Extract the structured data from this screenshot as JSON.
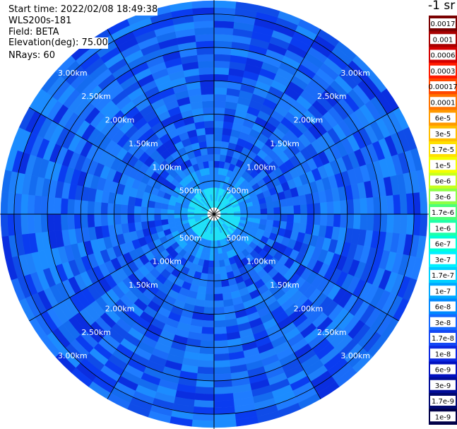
{
  "header": {
    "start_time": "Start time: 2022/02/08 18:49:38",
    "instrument": "WLS200s-181",
    "field": "Field: BETA",
    "elevation": "Elevation(deg): 75.00",
    "nrays": "NRays: 60"
  },
  "chart_data": {
    "type": "heatmap",
    "projection": "polar",
    "rays": 60,
    "range_rings": [
      "500m",
      "1.00km",
      "1.50km",
      "2.00km",
      "2.50km",
      "3.00km"
    ],
    "range_ring_values_km": [
      0.5,
      1.0,
      1.5,
      2.0,
      2.5,
      3.0
    ],
    "max_range_km": 3.2,
    "grid": true,
    "colorbar": {
      "title": "-1 sr",
      "placement": "right",
      "ticks": [
        {
          "label": "0.0017",
          "color": "#7a0000"
        },
        {
          "label": "0.001",
          "color": "#a80000"
        },
        {
          "label": "0.0006",
          "color": "#d40000"
        },
        {
          "label": "0.0003",
          "color": "#ff1a00"
        },
        {
          "label": "0.00017",
          "color": "#ff4800"
        },
        {
          "label": "0.0001",
          "color": "#ff7400"
        },
        {
          "label": "6e-5",
          "color": "#ff9a00"
        },
        {
          "label": "3e-5",
          "color": "#ffbe00"
        },
        {
          "label": "1.7e-5",
          "color": "#ffe000"
        },
        {
          "label": "1e-5",
          "color": "#f4ff00"
        },
        {
          "label": "6e-6",
          "color": "#c8ff1e"
        },
        {
          "label": "3e-6",
          "color": "#8cff46"
        },
        {
          "label": "1.7e-6",
          "color": "#4cff78"
        },
        {
          "label": "1e-6",
          "color": "#1effaa"
        },
        {
          "label": "6e-7",
          "color": "#00ffd8"
        },
        {
          "label": "3e-7",
          "color": "#00f0ff"
        },
        {
          "label": "1.7e-7",
          "color": "#00d0ff"
        },
        {
          "label": "1e-7",
          "color": "#00a8ff"
        },
        {
          "label": "6e-8",
          "color": "#0088ff"
        },
        {
          "label": "3e-8",
          "color": "#1468ff"
        },
        {
          "label": "1.7e-8",
          "color": "#1448f4"
        },
        {
          "label": "1e-8",
          "color": "#0c28e0"
        },
        {
          "label": "6e-9",
          "color": "#0010c0"
        },
        {
          "label": "3e-9",
          "color": "#000c98"
        },
        {
          "label": "1.7e-9",
          "color": "#000870"
        },
        {
          "label": "1e-9",
          "color": "#000048"
        }
      ]
    }
  }
}
